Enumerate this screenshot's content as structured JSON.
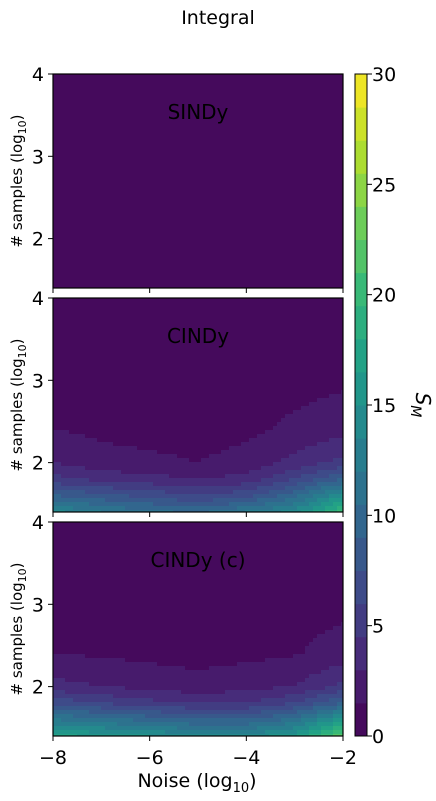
{
  "figure": {
    "title": "Integral",
    "xlabel": "Noise (log",
    "xlabel_sub": "10",
    "ylabel": "# samples (log",
    "ylabel_sub": "10",
    "colorbar": {
      "label": "S",
      "label_sub": "M",
      "ticks": [
        "0",
        "5",
        "10",
        "15",
        "20",
        "25",
        "30"
      ],
      "range": [
        0,
        30
      ],
      "colormap": "viridis"
    }
  },
  "chart_data": [
    {
      "type": "heatmap",
      "title": "SINDy",
      "xlim": [
        -8,
        -2
      ],
      "ylim": [
        1.4,
        4.0
      ],
      "xticks": [
        "−8",
        "−6",
        "−4",
        "−2"
      ],
      "yticks": [
        "2",
        "3",
        "4"
      ],
      "show_xticklabels": false,
      "x": [
        -8,
        -7,
        -6,
        -5,
        -4,
        -3,
        -2
      ],
      "y": [
        1.4,
        2.0,
        2.5,
        3.0,
        3.5,
        4.0
      ],
      "z": [
        [
          0.3,
          0.3,
          0.3,
          0.3,
          0.3,
          0.3,
          0.3
        ],
        [
          0.3,
          0.3,
          0.3,
          0.3,
          0.3,
          0.3,
          0.3
        ],
        [
          0.3,
          0.3,
          0.3,
          0.3,
          0.3,
          0.3,
          0.3
        ],
        [
          0.3,
          0.3,
          0.3,
          0.3,
          0.3,
          0.3,
          0.3
        ],
        [
          0.3,
          0.3,
          0.3,
          0.3,
          0.3,
          0.3,
          0.3
        ],
        [
          0.3,
          0.3,
          0.3,
          0.3,
          0.3,
          0.3,
          0.3
        ]
      ]
    },
    {
      "type": "heatmap",
      "title": "CINDy",
      "xlim": [
        -8,
        -2
      ],
      "ylim": [
        1.4,
        4.0
      ],
      "xticks": [
        "−8",
        "−6",
        "−4",
        "−2"
      ],
      "yticks": [
        "2",
        "3",
        "4"
      ],
      "show_xticklabels": false,
      "x": [
        -8,
        -7,
        -6,
        -5,
        -4,
        -3,
        -2
      ],
      "y": [
        1.4,
        1.6,
        1.8,
        2.0,
        2.4,
        3.0,
        3.5,
        4.0
      ],
      "z": [
        [
          14,
          12,
          11,
          10,
          12,
          14,
          20
        ],
        [
          9,
          8,
          7,
          6,
          7,
          10,
          15
        ],
        [
          5,
          4,
          3.5,
          3,
          3.5,
          6,
          9
        ],
        [
          3,
          2,
          1.8,
          1.5,
          2,
          3.5,
          5
        ],
        [
          1.5,
          1.2,
          1.0,
          0.9,
          1.2,
          1.8,
          2.5
        ],
        [
          1.2,
          0.8,
          0.9,
          1.0,
          0.8,
          1.0,
          1.2
        ],
        [
          1.0,
          0.8,
          1.0,
          0.9,
          0.8,
          0.9,
          1.0
        ],
        [
          0.9,
          0.8,
          0.8,
          0.8,
          0.8,
          0.8,
          0.9
        ]
      ]
    },
    {
      "type": "heatmap",
      "title": "CINDy (c)",
      "xlim": [
        -8,
        -2
      ],
      "ylim": [
        1.4,
        4.0
      ],
      "xticks": [
        "−8",
        "−6",
        "−4",
        "−2"
      ],
      "yticks": [
        "2",
        "3",
        "4"
      ],
      "show_xticklabels": true,
      "x": [
        -8,
        -7,
        -6,
        -5,
        -4,
        -3,
        -2
      ],
      "y": [
        1.4,
        1.6,
        1.8,
        2.0,
        2.4,
        3.0,
        3.5,
        4.0
      ],
      "z": [
        [
          17,
          16,
          15,
          14,
          14,
          16,
          22
        ],
        [
          12,
          11,
          10,
          9,
          9,
          11,
          16
        ],
        [
          7,
          6,
          5,
          4.5,
          4.5,
          6,
          9
        ],
        [
          3.5,
          3,
          2.5,
          2,
          2.5,
          3,
          5
        ],
        [
          1.5,
          1.3,
          1.1,
          1.0,
          1.1,
          1.4,
          2.0
        ],
        [
          1.2,
          1.1,
          1.0,
          1.0,
          1.0,
          1.1,
          1.2
        ],
        [
          1.0,
          0.9,
          1.0,
          0.9,
          0.9,
          1.0,
          1.0
        ],
        [
          1.2,
          1.1,
          1.2,
          1.3,
          1.1,
          1.2,
          1.3
        ]
      ]
    }
  ]
}
